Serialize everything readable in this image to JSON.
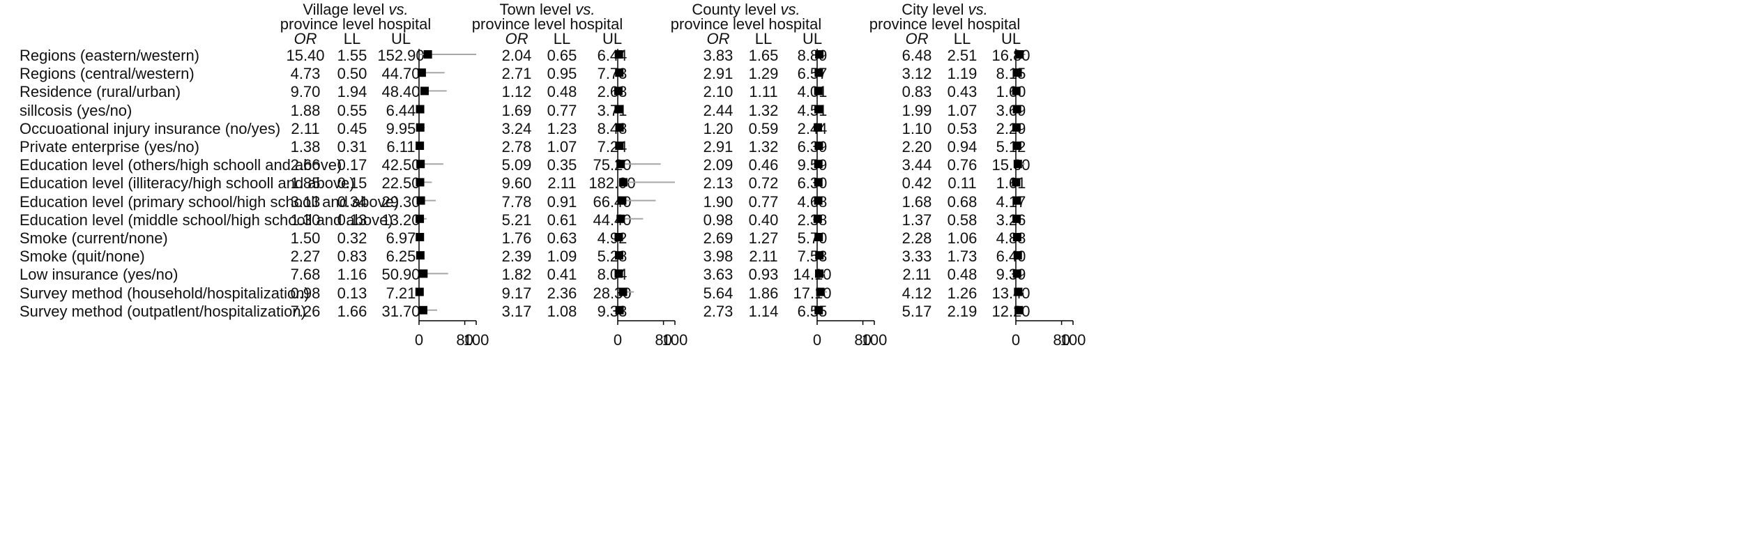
{
  "chart_data": {
    "type": "forest",
    "panels": [
      {
        "title_line1": "Village level",
        "title_vs": "vs.",
        "title_line2": "province level hospital",
        "values": [
          {
            "or": "15.40",
            "ll": "1.55",
            "ul": "152.90"
          },
          {
            "or": "4.73",
            "ll": "0.50",
            "ul": "44.70"
          },
          {
            "or": "9.70",
            "ll": "1.94",
            "ul": "48.40"
          },
          {
            "or": "1.88",
            "ll": "0.55",
            "ul": "6.44"
          },
          {
            "or": "2.11",
            "ll": "0.45",
            "ul": "9.95"
          },
          {
            "or": "1.38",
            "ll": "0.31",
            "ul": "6.11"
          },
          {
            "or": "2.66",
            "ll": "0.17",
            "ul": "42.50"
          },
          {
            "or": "1.85",
            "ll": "0.15",
            "ul": "22.50"
          },
          {
            "or": "3.13",
            "ll": "0.34",
            "ul": "29.30"
          },
          {
            "or": "1.30",
            "ll": "0.13",
            "ul": "13.20"
          },
          {
            "or": "1.50",
            "ll": "0.32",
            "ul": "6.97"
          },
          {
            "or": "2.27",
            "ll": "0.83",
            "ul": "6.25"
          },
          {
            "or": "7.68",
            "ll": "1.16",
            "ul": "50.90"
          },
          {
            "or": "0.98",
            "ll": "0.13",
            "ul": "7.21"
          },
          {
            "or": "7.26",
            "ll": "1.66",
            "ul": "31.70"
          }
        ]
      },
      {
        "title_line1": "Town level",
        "title_vs": "vs.",
        "title_line2": "province level hospital",
        "values": [
          {
            "or": "2.04",
            "ll": "0.65",
            "ul": "6.44"
          },
          {
            "or": "2.71",
            "ll": "0.95",
            "ul": "7.73"
          },
          {
            "or": "1.12",
            "ll": "0.48",
            "ul": "2.63"
          },
          {
            "or": "1.69",
            "ll": "0.77",
            "ul": "3.71"
          },
          {
            "or": "3.24",
            "ll": "1.23",
            "ul": "8.48"
          },
          {
            "or": "2.78",
            "ll": "1.07",
            "ul": "7.24"
          },
          {
            "or": "5.09",
            "ll": "0.35",
            "ul": "75.20"
          },
          {
            "or": "9.60",
            "ll": "2.11",
            "ul": "182.00"
          },
          {
            "or": "7.78",
            "ll": "0.91",
            "ul": "66.40"
          },
          {
            "or": "5.21",
            "ll": "0.61",
            "ul": "44.40"
          },
          {
            "or": "1.76",
            "ll": "0.63",
            "ul": "4.92"
          },
          {
            "or": "2.39",
            "ll": "1.09",
            "ul": "5.28"
          },
          {
            "or": "1.82",
            "ll": "0.41",
            "ul": "8.04"
          },
          {
            "or": "9.17",
            "ll": "2.36",
            "ul": "28.30"
          },
          {
            "or": "3.17",
            "ll": "1.08",
            "ul": "9.33"
          }
        ]
      },
      {
        "title_line1": "County level",
        "title_vs": "vs.",
        "title_line2": "province level hospital",
        "values": [
          {
            "or": "3.83",
            "ll": "1.65",
            "ul": "8.89"
          },
          {
            "or": "2.91",
            "ll": "1.29",
            "ul": "6.57"
          },
          {
            "or": "2.10",
            "ll": "1.11",
            "ul": "4.01"
          },
          {
            "or": "2.44",
            "ll": "1.32",
            "ul": "4.51"
          },
          {
            "or": "1.20",
            "ll": "0.59",
            "ul": "2.44"
          },
          {
            "or": "2.91",
            "ll": "1.32",
            "ul": "6.39"
          },
          {
            "or": "2.09",
            "ll": "0.46",
            "ul": "9.59"
          },
          {
            "or": "2.13",
            "ll": "0.72",
            "ul": "6.30"
          },
          {
            "or": "1.90",
            "ll": "0.77",
            "ul": "4.68"
          },
          {
            "or": "0.98",
            "ll": "0.40",
            "ul": "2.38"
          },
          {
            "or": "2.69",
            "ll": "1.27",
            "ul": "5.70"
          },
          {
            "or": "3.98",
            "ll": "2.11",
            "ul": "7.53"
          },
          {
            "or": "3.63",
            "ll": "0.93",
            "ul": "14.10"
          },
          {
            "or": "5.64",
            "ll": "1.86",
            "ul": "17.10"
          },
          {
            "or": "2.73",
            "ll": "1.14",
            "ul": "6.55"
          }
        ]
      },
      {
        "title_line1": "City level",
        "title_vs": "vs.",
        "title_line2": "province level hospital",
        "values": [
          {
            "or": "6.48",
            "ll": "2.51",
            "ul": "16.80"
          },
          {
            "or": "3.12",
            "ll": "1.19",
            "ul": "8.15"
          },
          {
            "or": "0.83",
            "ll": "0.43",
            "ul": "1.60"
          },
          {
            "or": "1.99",
            "ll": "1.07",
            "ul": "3.69"
          },
          {
            "or": "1.10",
            "ll": "0.53",
            "ul": "2.29"
          },
          {
            "or": "2.20",
            "ll": "0.94",
            "ul": "5.12"
          },
          {
            "or": "3.44",
            "ll": "0.76",
            "ul": "15.60"
          },
          {
            "or": "0.42",
            "ll": "0.11",
            "ul": "1.61"
          },
          {
            "or": "1.68",
            "ll": "0.68",
            "ul": "4.17"
          },
          {
            "or": "1.37",
            "ll": "0.58",
            "ul": "3.26"
          },
          {
            "or": "2.28",
            "ll": "1.06",
            "ul": "4.88"
          },
          {
            "or": "3.33",
            "ll": "1.73",
            "ul": "6.40"
          },
          {
            "or": "2.11",
            "ll": "0.48",
            "ul": "9.39"
          },
          {
            "or": "4.12",
            "ll": "1.26",
            "ul": "13.40"
          },
          {
            "or": "5.17",
            "ll": "2.19",
            "ul": "12.20"
          }
        ]
      }
    ],
    "column_headers": {
      "or": "OR",
      "ll": "LL",
      "ul": "UL"
    },
    "row_labels": [
      "Regions (eastern/western)",
      "Regions (central/western)",
      "Residence (rural/urban)",
      "sillcosis (yes/no)",
      "Occuoational injury insurance (no/yes)",
      "Private enterprise (yes/no)",
      "Education level (others/high schooll and above)",
      "Education level (illiteracy/high schooll and above)",
      "Education level (primary school/high schooll and above)",
      "Education level (middle school/high schooll and above)",
      "Smoke (current/none)",
      "Smoke (quit/none)",
      "Low insurance (yes/no)",
      "Survey method (household/hospitalization)",
      "Survey method (outpatlent/hospitalization)"
    ],
    "x_ticks": [
      0,
      80,
      100
    ],
    "x_tick_labels": [
      "0",
      "80",
      "100"
    ],
    "xlim": [
      0,
      100
    ],
    "ci_clip": 100,
    "colors": {
      "marker": "#000000",
      "ci_line": "#a6a6a6",
      "axis": "#000000"
    }
  }
}
